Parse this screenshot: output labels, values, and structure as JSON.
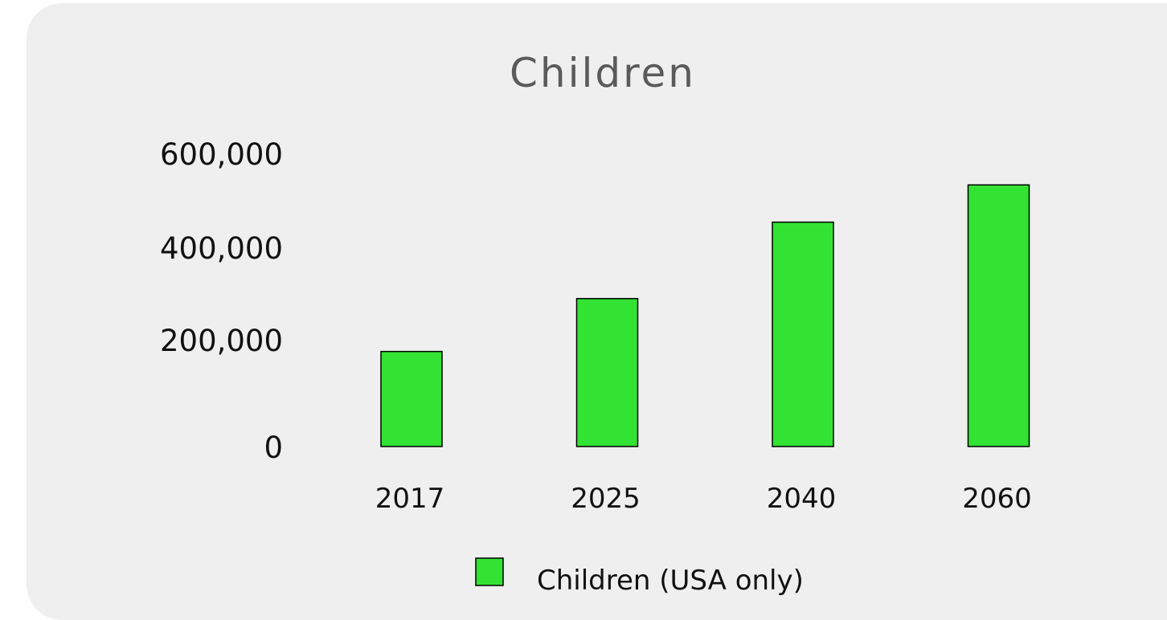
{
  "chart_data": {
    "type": "bar",
    "title": "Children",
    "categories": [
      "2017",
      "2025",
      "2040",
      "2060"
    ],
    "series": [
      {
        "name": "Children (USA only)",
        "values": [
          194000,
          302000,
          458000,
          534000
        ],
        "color": "#33e333"
      }
    ],
    "ylim": [
      0,
      600000
    ],
    "yticks": [
      0,
      200000,
      400000,
      600000
    ],
    "ytick_labels": [
      "0",
      "200,000",
      "400,000",
      "600,000"
    ],
    "grid": false,
    "legend": "bottom"
  }
}
